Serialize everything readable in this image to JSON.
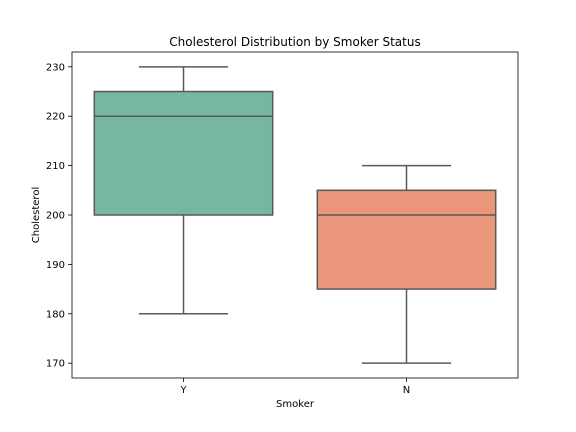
{
  "chart_data": {
    "type": "box",
    "title": "Cholesterol Distribution by Smoker Status",
    "xlabel": "Smoker",
    "ylabel": "Cholesterol",
    "categories": [
      "Y",
      "N"
    ],
    "ylim": [
      167,
      233
    ],
    "yticks": [
      170,
      180,
      190,
      200,
      210,
      220,
      230
    ],
    "grid": false,
    "series": [
      {
        "category": "Y",
        "whisker_low": 180,
        "q1": 200,
        "median": 220,
        "q3": 225,
        "whisker_high": 230,
        "color": "#76b7a0"
      },
      {
        "category": "N",
        "whisker_low": 170,
        "q1": 185,
        "median": 200,
        "q3": 205,
        "whisker_high": 210,
        "color": "#e9967a"
      }
    ],
    "line_color": "#595959"
  }
}
